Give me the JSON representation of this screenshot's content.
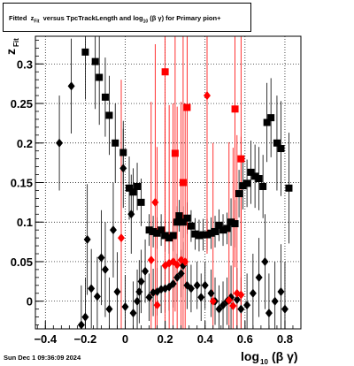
{
  "title": {
    "fitted": "Fitted",
    "z": "z",
    "z_sub": "Fit",
    "middle": "versus TpcTrackLength and log",
    "log_sub": "10",
    "bg": "(β γ)",
    "tail": "for Primary pion+"
  },
  "datestamp": "Sun Dec  1 09:36:09 2024",
  "colors": {
    "black_series": "#000000",
    "red_series": "#ff0000",
    "grid": "#000000"
  },
  "chart_data": {
    "type": "scatter",
    "xlabel": {
      "main": "log",
      "sub": "10",
      "tail": "(β γ)"
    },
    "ylabel": {
      "main": "z",
      "sub": "Fit"
    },
    "xlim": [
      -0.45,
      0.88
    ],
    "ylim": [
      -0.035,
      0.335
    ],
    "xticks": [
      -0.4,
      -0.2,
      0,
      0.2,
      0.4,
      0.6,
      0.8
    ],
    "xtick_labels": [
      "−0.4",
      "−0.2",
      "0",
      "0.2",
      "0.4",
      "0.6",
      "0.8"
    ],
    "yticks": [
      0,
      0.05,
      0.1,
      0.15,
      0.2,
      0.25,
      0.3
    ],
    "ytick_labels": [
      "0",
      "0.05",
      "0.1",
      "0.15",
      "0.2",
      "0.25",
      "0.3"
    ],
    "grid": true,
    "series": [
      {
        "marker": "diamond",
        "color": "#000000",
        "points": [
          {
            "x": -0.33,
            "y": 0.2,
            "e": 0.06
          },
          {
            "x": -0.27,
            "y": 0.272,
            "e": 0.06
          },
          {
            "x": -0.22,
            "y": -0.03,
            "e": 0.05
          },
          {
            "x": -0.2,
            "y": -0.02,
            "e": 0.05
          },
          {
            "x": -0.19,
            "y": 0.078,
            "e": 0.07
          },
          {
            "x": -0.17,
            "y": 0.016,
            "e": 0.05
          },
          {
            "x": -0.14,
            "y": 0.006,
            "e": 0.05
          },
          {
            "x": -0.12,
            "y": 0.055,
            "e": 0.06
          },
          {
            "x": -0.1,
            "y": 0.04,
            "e": 0.06
          },
          {
            "x": -0.08,
            "y": -0.01,
            "e": 0.04
          },
          {
            "x": -0.06,
            "y": 0.09,
            "e": 0.06
          },
          {
            "x": -0.04,
            "y": 0.012,
            "e": 0.05
          },
          {
            "x": -0.01,
            "y": 0.168,
            "e": 0.05
          },
          {
            "x": 0.0,
            "y": -0.007,
            "e": 0.04
          },
          {
            "x": 0.03,
            "y": 0.11,
            "e": 0.05
          },
          {
            "x": 0.04,
            "y": -0.015,
            "e": 0.04
          },
          {
            "x": 0.06,
            "y": 0.0,
            "e": 0.04
          },
          {
            "x": 0.07,
            "y": 0.012,
            "e": 0.04
          },
          {
            "x": 0.08,
            "y": 0.025,
            "e": 0.04
          },
          {
            "x": 0.1,
            "y": 0.038,
            "e": 0.04
          },
          {
            "x": 0.12,
            "y": 0.005,
            "e": 0.03
          },
          {
            "x": 0.14,
            "y": 0.011,
            "e": 0.03
          },
          {
            "x": 0.16,
            "y": 0.012,
            "e": 0.03
          },
          {
            "x": 0.18,
            "y": 0.015,
            "e": 0.03
          },
          {
            "x": 0.2,
            "y": 0.016,
            "e": 0.03
          },
          {
            "x": 0.22,
            "y": 0.018,
            "e": 0.03
          },
          {
            "x": 0.24,
            "y": 0.022,
            "e": 0.03
          },
          {
            "x": 0.26,
            "y": 0.03,
            "e": 0.03
          },
          {
            "x": 0.28,
            "y": 0.035,
            "e": 0.03
          },
          {
            "x": 0.29,
            "y": 0.045,
            "e": 0.03
          },
          {
            "x": 0.31,
            "y": 0.02,
            "e": 0.03
          },
          {
            "x": 0.33,
            "y": 0.016,
            "e": 0.03
          },
          {
            "x": 0.36,
            "y": 0.02,
            "e": 0.03
          },
          {
            "x": 0.38,
            "y": 0.005,
            "e": 0.03
          },
          {
            "x": 0.4,
            "y": 0.02,
            "e": 0.03
          },
          {
            "x": 0.43,
            "y": 0.01,
            "e": 0.03
          },
          {
            "x": 0.45,
            "y": 0.0,
            "e": 0.03
          },
          {
            "x": 0.47,
            "y": -0.01,
            "e": 0.03
          },
          {
            "x": 0.49,
            "y": -0.005,
            "e": 0.03
          },
          {
            "x": 0.51,
            "y": 0.0,
            "e": 0.03
          },
          {
            "x": 0.53,
            "y": 0.005,
            "e": 0.04
          },
          {
            "x": 0.56,
            "y": 0.002,
            "e": 0.04
          },
          {
            "x": 0.58,
            "y": -0.01,
            "e": 0.04
          },
          {
            "x": 0.61,
            "y": -0.005,
            "e": 0.04
          },
          {
            "x": 0.64,
            "y": 0.01,
            "e": 0.05
          },
          {
            "x": 0.67,
            "y": 0.03,
            "e": 0.05
          },
          {
            "x": 0.7,
            "y": 0.05,
            "e": 0.06
          },
          {
            "x": 0.72,
            "y": -0.015,
            "e": 0.05
          },
          {
            "x": 0.75,
            "y": 0.0,
            "e": 0.05
          },
          {
            "x": 0.78,
            "y": 0.012,
            "e": 0.06
          },
          {
            "x": 0.8,
            "y": -0.01,
            "e": 0.06
          }
        ]
      },
      {
        "marker": "square",
        "color": "#000000",
        "points": [
          {
            "x": -0.2,
            "y": 0.315,
            "e": 0.06
          },
          {
            "x": -0.15,
            "y": 0.303,
            "e": 0.06
          },
          {
            "x": -0.13,
            "y": 0.283,
            "e": 0.06
          },
          {
            "x": -0.1,
            "y": 0.258,
            "e": 0.05
          },
          {
            "x": -0.08,
            "y": 0.235,
            "e": 0.05
          },
          {
            "x": -0.05,
            "y": 0.2,
            "e": 0.05
          },
          {
            "x": -0.01,
            "y": 0.188,
            "e": 0.04
          },
          {
            "x": 0.02,
            "y": 0.143,
            "e": 0.04
          },
          {
            "x": 0.04,
            "y": 0.138,
            "e": 0.03
          },
          {
            "x": 0.06,
            "y": 0.145,
            "e": 0.03
          },
          {
            "x": 0.08,
            "y": 0.125,
            "e": 0.03
          },
          {
            "x": 0.12,
            "y": 0.09,
            "e": 0.02
          },
          {
            "x": 0.14,
            "y": 0.088,
            "e": 0.02
          },
          {
            "x": 0.16,
            "y": 0.086,
            "e": 0.02
          },
          {
            "x": 0.18,
            "y": 0.09,
            "e": 0.02
          },
          {
            "x": 0.2,
            "y": 0.083,
            "e": 0.02
          },
          {
            "x": 0.22,
            "y": 0.08,
            "e": 0.02
          },
          {
            "x": 0.24,
            "y": 0.083,
            "e": 0.02
          },
          {
            "x": 0.26,
            "y": 0.1,
            "e": 0.02
          },
          {
            "x": 0.27,
            "y": 0.108,
            "e": 0.02
          },
          {
            "x": 0.29,
            "y": 0.1,
            "e": 0.02
          },
          {
            "x": 0.31,
            "y": 0.105,
            "e": 0.02
          },
          {
            "x": 0.33,
            "y": 0.095,
            "e": 0.02
          },
          {
            "x": 0.35,
            "y": 0.085,
            "e": 0.02
          },
          {
            "x": 0.37,
            "y": 0.083,
            "e": 0.02
          },
          {
            "x": 0.39,
            "y": 0.084,
            "e": 0.02
          },
          {
            "x": 0.41,
            "y": 0.084,
            "e": 0.02
          },
          {
            "x": 0.43,
            "y": 0.086,
            "e": 0.02
          },
          {
            "x": 0.45,
            "y": 0.088,
            "e": 0.02
          },
          {
            "x": 0.47,
            "y": 0.096,
            "e": 0.02
          },
          {
            "x": 0.49,
            "y": 0.09,
            "e": 0.02
          },
          {
            "x": 0.51,
            "y": 0.092,
            "e": 0.02
          },
          {
            "x": 0.53,
            "y": 0.1,
            "e": 0.03
          },
          {
            "x": 0.55,
            "y": 0.098,
            "e": 0.03
          },
          {
            "x": 0.57,
            "y": 0.136,
            "e": 0.03
          },
          {
            "x": 0.59,
            "y": 0.146,
            "e": 0.03
          },
          {
            "x": 0.61,
            "y": 0.149,
            "e": 0.03
          },
          {
            "x": 0.63,
            "y": 0.163,
            "e": 0.04
          },
          {
            "x": 0.65,
            "y": 0.158,
            "e": 0.04
          },
          {
            "x": 0.67,
            "y": 0.155,
            "e": 0.04
          },
          {
            "x": 0.69,
            "y": 0.145,
            "e": 0.04
          },
          {
            "x": 0.71,
            "y": 0.226,
            "e": 0.05
          },
          {
            "x": 0.73,
            "y": 0.232,
            "e": 0.05
          },
          {
            "x": 0.76,
            "y": 0.2,
            "e": 0.06
          },
          {
            "x": 0.78,
            "y": 0.193,
            "e": 0.06
          },
          {
            "x": 0.82,
            "y": 0.143,
            "e": 0.07
          }
        ]
      },
      {
        "marker": "diamond",
        "color": "#ff0000",
        "points": [
          {
            "x": -0.02,
            "y": 0.08,
            "e": 0.2
          },
          {
            "x": 0.13,
            "y": 0.052,
            "e": 0.2
          },
          {
            "x": 0.15,
            "y": 0.125,
            "e": 0.2
          },
          {
            "x": 0.16,
            "y": -0.005,
            "e": 0.2
          },
          {
            "x": 0.2,
            "y": 0.045,
            "e": 0.2
          },
          {
            "x": 0.22,
            "y": 0.048,
            "e": 0.2
          },
          {
            "x": 0.24,
            "y": 0.05,
            "e": 0.2
          },
          {
            "x": 0.26,
            "y": 0.046,
            "e": 0.2
          },
          {
            "x": 0.28,
            "y": 0.052,
            "e": 0.2
          },
          {
            "x": 0.3,
            "y": 0.05,
            "e": 0.2
          },
          {
            "x": 0.41,
            "y": 0.26,
            "e": 0.2
          },
          {
            "x": 0.44,
            "y": 0.0,
            "e": 0.2
          },
          {
            "x": 0.52,
            "y": 0.001,
            "e": 0.2
          },
          {
            "x": 0.54,
            "y": -0.006,
            "e": 0.2
          },
          {
            "x": 0.56,
            "y": 0.01,
            "e": 0.2
          },
          {
            "x": 0.58,
            "y": 0.008,
            "e": 0.2
          }
        ]
      },
      {
        "marker": "square",
        "color": "#ff0000",
        "points": [
          {
            "x": 0.2,
            "y": 0.29,
            "e": 0.2
          },
          {
            "x": 0.25,
            "y": 0.187,
            "e": 0.2
          },
          {
            "x": 0.29,
            "y": 0.15,
            "e": 0.2
          },
          {
            "x": 0.31,
            "y": 0.245,
            "e": 0.2
          },
          {
            "x": 0.55,
            "y": 0.243,
            "e": 0.2
          },
          {
            "x": 0.58,
            "y": 0.18,
            "e": 0.2
          }
        ]
      }
    ]
  }
}
